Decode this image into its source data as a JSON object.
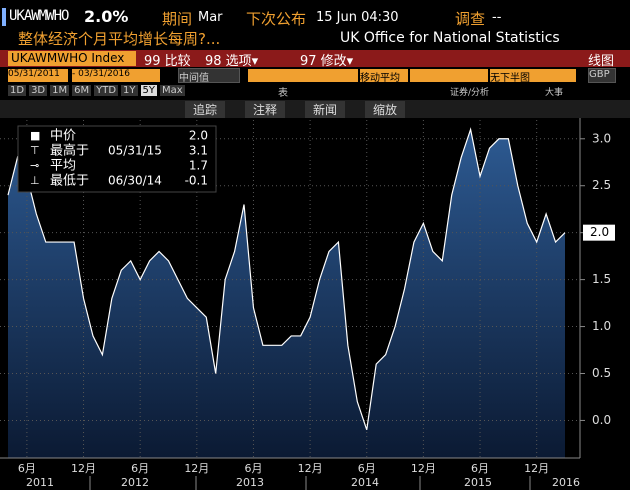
{
  "header": {
    "ticker": "UKAWMWHO",
    "last": "2.0%",
    "period_label": "期间",
    "period": "Mar",
    "next_release_label": "下次公布",
    "next_release": "15 Jun 04:30",
    "survey_label": "调查",
    "survey": "--",
    "description": "整体经济个月平均增长每周?...",
    "source": "UK Office for National Statistics"
  },
  "toolbar": {
    "security": "UKAWMWHO Index",
    "compare": "99 比较",
    "options": "98 选项▾",
    "modify": "97 修改▾",
    "chart_kind": "线图",
    "start_date": "05/31/2011",
    "end_date": "- 03/31/2016",
    "value_kind": "中间值",
    "moving_average": "移动平均",
    "lower_chart": "无下半图",
    "currency": "GBP",
    "ranges": [
      "1D",
      "3D",
      "1M",
      "6M",
      "YTD",
      "1Y",
      "5Y",
      "Max"
    ],
    "table": "表",
    "analysis": "证券/分析",
    "events": "大事",
    "tools": [
      "追踪",
      "注释",
      "新闻",
      "缩放"
    ]
  },
  "chart_data": {
    "type": "area",
    "categories": [
      null,
      null,
      "6月",
      null,
      null,
      null,
      null,
      null,
      "12月",
      null,
      null,
      null,
      null,
      null,
      "6月",
      null,
      null,
      null,
      null,
      null,
      "12月",
      null,
      null,
      null,
      null,
      null,
      "6月",
      null,
      null,
      null,
      null,
      null,
      "12月",
      null,
      null,
      null,
      null,
      null,
      "6月",
      null,
      null,
      null,
      null,
      null,
      "12月",
      null,
      null,
      null,
      null,
      null,
      "6月",
      null,
      null,
      null,
      null,
      null,
      "12月",
      null,
      null,
      null
    ],
    "years": [
      "2011",
      "2012",
      "2013",
      "2014",
      "2015",
      "2016"
    ],
    "series": [
      {
        "name": "中价",
        "color": "#ffffff",
        "values": [
          2.4,
          2.8,
          2.6,
          2.2,
          1.9,
          1.9,
          1.9,
          1.9,
          1.3,
          0.9,
          0.7,
          1.3,
          1.6,
          1.7,
          1.5,
          1.7,
          1.8,
          1.7,
          1.5,
          1.3,
          1.2,
          1.1,
          0.5,
          1.5,
          1.8,
          2.3,
          1.2,
          0.8,
          0.8,
          0.8,
          0.9,
          0.9,
          1.1,
          1.5,
          1.8,
          1.9,
          0.8,
          0.2,
          -0.1,
          0.6,
          0.7,
          1.0,
          1.4,
          1.9,
          2.1,
          1.8,
          1.7,
          2.4,
          2.8,
          3.1,
          2.6,
          2.9,
          3.0,
          3.0,
          2.5,
          2.1,
          1.9,
          2.2,
          1.9,
          2.0
        ]
      }
    ],
    "last_value_label": "2.0",
    "legend": [
      {
        "label": "中价",
        "value": "2.0"
      },
      {
        "label": "最高于",
        "date": "05/31/15",
        "value": "3.1"
      },
      {
        "label": "平均",
        "value": "1.7"
      },
      {
        "label": "最低于",
        "date": "06/30/14",
        "value": "-0.1"
      }
    ],
    "ylim": [
      -0.4,
      3.2
    ],
    "yticks": [
      {
        "value": 3,
        "label": "3.0"
      },
      2.5,
      {
        "value": 2,
        "label": "2.0"
      },
      1.5,
      {
        "value": 1,
        "label": "1.0"
      },
      0.5,
      {
        "value": 0,
        "label": "0.0"
      }
    ],
    "grid": true
  }
}
